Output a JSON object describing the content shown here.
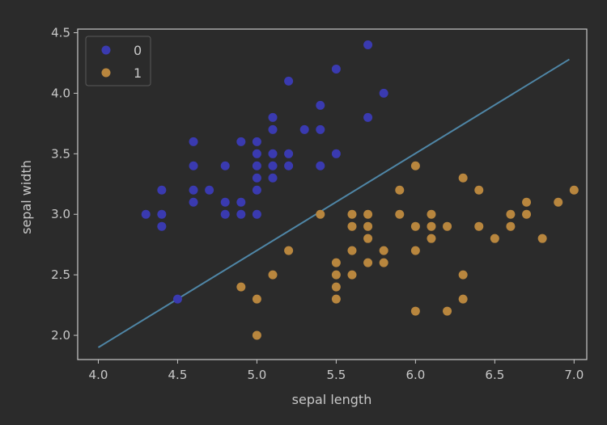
{
  "colors": {
    "background": "#2b2b2b",
    "axes": "#c8c8c8",
    "text": "#c8c8c8",
    "class0": "#3a3ab0",
    "class1": "#b8863e",
    "boundary": "#4f86a6"
  },
  "chart_data": {
    "type": "scatter",
    "title": "",
    "xlabel": "sepal length",
    "ylabel": "sepal width",
    "xlim": [
      3.87,
      7.08
    ],
    "ylim": [
      1.8,
      4.53
    ],
    "grid": false,
    "legend_position": "top-left",
    "x_ticks": [
      {
        "value": 4.0,
        "label": "4.0"
      },
      {
        "value": 4.5,
        "label": "4.5"
      },
      {
        "value": 5.0,
        "label": "5.0"
      },
      {
        "value": 5.5,
        "label": "5.5"
      },
      {
        "value": 6.0,
        "label": "6.0"
      },
      {
        "value": 6.5,
        "label": "6.5"
      },
      {
        "value": 7.0,
        "label": "7.0"
      }
    ],
    "y_ticks": [
      {
        "value": 2.0,
        "label": "2.0"
      },
      {
        "value": 2.5,
        "label": "2.5"
      },
      {
        "value": 3.0,
        "label": "3.0"
      },
      {
        "value": 3.5,
        "label": "3.5"
      },
      {
        "value": 4.0,
        "label": "4.0"
      },
      {
        "value": 4.5,
        "label": "4.5"
      }
    ],
    "series": [
      {
        "name": "0",
        "color": "#3a3ab0",
        "points": [
          [
            4.3,
            3.0
          ],
          [
            4.4,
            3.2
          ],
          [
            4.4,
            3.0
          ],
          [
            4.4,
            2.9
          ],
          [
            4.5,
            2.3
          ],
          [
            4.6,
            3.6
          ],
          [
            4.6,
            3.4
          ],
          [
            4.6,
            3.2
          ],
          [
            4.6,
            3.1
          ],
          [
            4.7,
            3.2
          ],
          [
            4.8,
            3.4
          ],
          [
            4.8,
            3.1
          ],
          [
            4.8,
            3.0
          ],
          [
            4.9,
            3.6
          ],
          [
            4.9,
            3.1
          ],
          [
            4.9,
            3.0
          ],
          [
            5.0,
            3.6
          ],
          [
            5.0,
            3.5
          ],
          [
            5.0,
            3.4
          ],
          [
            5.0,
            3.3
          ],
          [
            5.0,
            3.2
          ],
          [
            5.0,
            3.0
          ],
          [
            5.1,
            3.8
          ],
          [
            5.1,
            3.7
          ],
          [
            5.1,
            3.5
          ],
          [
            5.1,
            3.4
          ],
          [
            5.1,
            3.3
          ],
          [
            5.2,
            4.1
          ],
          [
            5.2,
            3.5
          ],
          [
            5.2,
            3.4
          ],
          [
            5.3,
            3.7
          ],
          [
            5.4,
            3.9
          ],
          [
            5.4,
            3.7
          ],
          [
            5.4,
            3.4
          ],
          [
            5.5,
            4.2
          ],
          [
            5.5,
            3.5
          ],
          [
            5.7,
            4.4
          ],
          [
            5.7,
            3.8
          ],
          [
            5.8,
            4.0
          ]
        ]
      },
      {
        "name": "1",
        "color": "#b8863e",
        "points": [
          [
            4.9,
            2.4
          ],
          [
            5.0,
            2.3
          ],
          [
            5.0,
            2.0
          ],
          [
            5.1,
            2.5
          ],
          [
            5.2,
            2.7
          ],
          [
            5.4,
            3.0
          ],
          [
            5.5,
            2.6
          ],
          [
            5.5,
            2.5
          ],
          [
            5.5,
            2.4
          ],
          [
            5.5,
            2.3
          ],
          [
            5.6,
            3.0
          ],
          [
            5.6,
            2.9
          ],
          [
            5.6,
            2.7
          ],
          [
            5.6,
            2.5
          ],
          [
            5.7,
            3.0
          ],
          [
            5.7,
            2.9
          ],
          [
            5.7,
            2.8
          ],
          [
            5.7,
            2.6
          ],
          [
            5.8,
            2.7
          ],
          [
            5.8,
            2.6
          ],
          [
            5.9,
            3.2
          ],
          [
            5.9,
            3.0
          ],
          [
            6.0,
            3.4
          ],
          [
            6.0,
            2.9
          ],
          [
            6.0,
            2.7
          ],
          [
            6.0,
            2.2
          ],
          [
            6.1,
            3.0
          ],
          [
            6.1,
            2.9
          ],
          [
            6.1,
            2.8
          ],
          [
            6.2,
            2.9
          ],
          [
            6.2,
            2.2
          ],
          [
            6.3,
            3.3
          ],
          [
            6.3,
            2.5
          ],
          [
            6.3,
            2.3
          ],
          [
            6.4,
            3.2
          ],
          [
            6.4,
            2.9
          ],
          [
            6.5,
            2.8
          ],
          [
            6.6,
            3.0
          ],
          [
            6.6,
            2.9
          ],
          [
            6.7,
            3.1
          ],
          [
            6.7,
            3.0
          ],
          [
            6.8,
            2.8
          ],
          [
            6.9,
            3.1
          ],
          [
            7.0,
            3.2
          ]
        ]
      }
    ],
    "decision_boundary": [
      [
        4.0,
        1.9
      ],
      [
        6.97,
        4.28
      ]
    ]
  }
}
